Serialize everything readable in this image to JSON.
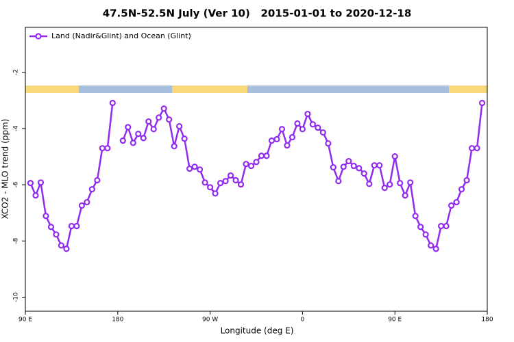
{
  "chart_data": {
    "type": "line",
    "title": "47.5N-52.5N July (Ver 10)   2015-01-01 to 2020-12-18",
    "x_label": "Longitude (deg E)",
    "y_label": "XCO2 - MLO trend (ppm)",
    "xlim": [
      90,
      540
    ],
    "xticks": [
      {
        "value": 90,
        "label": "90 E"
      },
      {
        "value": 180,
        "label": "180"
      },
      {
        "value": 270,
        "label": "90 W"
      },
      {
        "value": 360,
        "label": "0"
      },
      {
        "value": 450,
        "label": "90 E"
      },
      {
        "value": 540,
        "label": "180"
      }
    ],
    "ylim": [
      -10.5,
      -0.4
    ],
    "yticks": [
      -10,
      -8,
      -6,
      -4,
      -2
    ],
    "legend": "top-left",
    "x": [
      95,
      100,
      105,
      110,
      115,
      120,
      125,
      130,
      135,
      140,
      145,
      150,
      155,
      160,
      165,
      170,
      175,
      180,
      185,
      190,
      195,
      200,
      205,
      210,
      215,
      220,
      225,
      230,
      235,
      240,
      245,
      250,
      255,
      260,
      265,
      270,
      275,
      280,
      285,
      290,
      295,
      300,
      305,
      310,
      315,
      320,
      325,
      330,
      335,
      340,
      345,
      350,
      355,
      360,
      365,
      370,
      375,
      380,
      385,
      390,
      395,
      400,
      405,
      410,
      415,
      420,
      425,
      430,
      435,
      440,
      445,
      450,
      455,
      460,
      465,
      470,
      475,
      480,
      485,
      490,
      495,
      500,
      505,
      510,
      515,
      520,
      525,
      530,
      535
    ],
    "series": [
      {
        "name": "Land (Nadir&Glint) and Ocean (Glint)",
        "color": "#912cee",
        "values": [
          -5.94,
          -6.38,
          -5.92,
          -7.11,
          -7.5,
          -7.77,
          -8.16,
          -8.28,
          -7.47,
          -7.47,
          -6.74,
          -6.62,
          -6.16,
          -5.84,
          -4.7,
          -4.7,
          -3.09,
          null,
          -4.43,
          -3.95,
          -4.51,
          -4.19,
          -4.34,
          -3.75,
          -4.02,
          -3.61,
          -3.29,
          -3.68,
          -4.63,
          -3.92,
          -4.36,
          -5.43,
          -5.36,
          -5.46,
          -5.92,
          -6.09,
          -6.31,
          -5.94,
          -5.87,
          -5.67,
          -5.84,
          -5.99,
          -5.26,
          -5.33,
          -5.19,
          -4.97,
          -4.97,
          -4.43,
          -4.38,
          -4.02,
          -4.6,
          -4.31,
          -3.82,
          -4.02,
          -3.48,
          -3.85,
          -3.97,
          -4.14,
          -4.53,
          -5.38,
          -5.87,
          -5.36,
          -5.16,
          -5.33,
          -5.41,
          -5.6,
          -5.97,
          -5.31,
          -5.31,
          -6.11,
          -5.99,
          -4.99,
          -5.94,
          -6.38,
          -5.92,
          -7.11,
          -7.5,
          -7.77,
          -8.16,
          -8.28,
          -7.47,
          -7.47,
          -6.74,
          -6.62,
          -6.16,
          -5.84,
          -4.7,
          -4.7,
          -3.09
        ]
      }
    ]
  }
}
